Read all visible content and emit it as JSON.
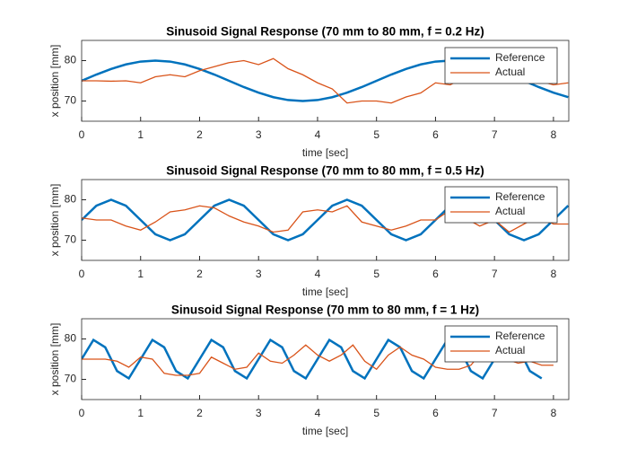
{
  "chart_data": [
    {
      "type": "line",
      "title": "Sinusoid Signal Response (70 mm to 80 mm, f = 0.2 Hz)",
      "x_label": "time [sec]",
      "y_label": "x position [mm]",
      "x": [
        0,
        0.25,
        0.5,
        0.75,
        1,
        1.25,
        1.5,
        1.75,
        2,
        2.25,
        2.5,
        2.75,
        3,
        3.25,
        3.5,
        3.75,
        4,
        4.25,
        4.5,
        4.75,
        5,
        5.25,
        5.5,
        5.75,
        6,
        6.25,
        6.5,
        6.75,
        7,
        7.25,
        7.5,
        7.75,
        8,
        8.25
      ],
      "series": [
        {
          "name": "Reference",
          "color": "#0072bd",
          "values": [
            75,
            76.55,
            77.94,
            79.05,
            79.76,
            80,
            79.76,
            79.05,
            77.94,
            76.55,
            75,
            73.45,
            72.06,
            70.95,
            70.24,
            70,
            70.24,
            70.95,
            72.06,
            73.45,
            75,
            76.55,
            77.94,
            79.05,
            79.76,
            80,
            79.76,
            79.05,
            77.94,
            76.55,
            75,
            73.45,
            72.06,
            70.95
          ]
        },
        {
          "name": "Actual",
          "color": "#d95319",
          "values": [
            75,
            75,
            74.9,
            75,
            74.5,
            76,
            76.5,
            76,
            77.5,
            78.5,
            79.5,
            80,
            79,
            80.5,
            78,
            76.5,
            74.5,
            73,
            69.5,
            70,
            70,
            69.5,
            71,
            72,
            74.5,
            74,
            76,
            75.5,
            75,
            76,
            76.5,
            75,
            74,
            74.5
          ]
        }
      ],
      "xlim": [
        0,
        8.26
      ],
      "ylim": [
        65,
        85
      ],
      "xticks": [
        0,
        1,
        2,
        3,
        4,
        5,
        6,
        7,
        8
      ],
      "yticks": [
        70,
        80
      ],
      "legend": "upper right"
    },
    {
      "type": "line",
      "title": "Sinusoid Signal Response (70 mm to 80 mm, f = 0.5 Hz)",
      "x_label": "time [sec]",
      "y_label": "x position [mm]",
      "x": [
        0,
        0.25,
        0.5,
        0.75,
        1,
        1.25,
        1.5,
        1.75,
        2,
        2.25,
        2.5,
        2.75,
        3,
        3.25,
        3.5,
        3.75,
        4,
        4.25,
        4.5,
        4.75,
        5,
        5.25,
        5.5,
        5.75,
        6,
        6.25,
        6.5,
        6.75,
        7,
        7.25,
        7.5,
        7.75,
        8,
        8.25
      ],
      "series": [
        {
          "name": "Reference",
          "color": "#0072bd",
          "values": [
            75,
            78.54,
            80,
            78.54,
            75,
            71.46,
            70,
            71.46,
            75,
            78.54,
            80,
            78.54,
            75,
            71.46,
            70,
            71.46,
            75,
            78.54,
            80,
            78.54,
            75,
            71.46,
            70,
            71.46,
            75,
            78.54,
            80,
            78.54,
            75,
            71.46,
            70,
            71.46,
            75,
            78.54
          ]
        },
        {
          "name": "Actual",
          "color": "#d95319",
          "values": [
            75.5,
            75,
            75,
            73.5,
            72.5,
            74.5,
            77,
            77.5,
            78.5,
            78,
            76,
            74.5,
            73.5,
            72,
            72.5,
            77,
            77.5,
            77,
            78.5,
            74.5,
            73.5,
            72.5,
            73.5,
            75,
            75,
            77.5,
            75.5,
            73.5,
            75,
            72,
            74,
            76,
            74,
            74
          ]
        }
      ],
      "xlim": [
        0,
        8.26
      ],
      "ylim": [
        65,
        85
      ],
      "xticks": [
        0,
        1,
        2,
        3,
        4,
        5,
        6,
        7,
        8
      ],
      "yticks": [
        70,
        80
      ],
      "legend": "upper right"
    },
    {
      "type": "line",
      "title": "Sinusoid Signal Response (70 mm to 80 mm, f = 1 Hz)",
      "x_label": "time [sec]",
      "y_label": "x position [mm]",
      "x": [
        0,
        0.2,
        0.4,
        0.6,
        0.8,
        1,
        1.2,
        1.4,
        1.6,
        1.8,
        2,
        2.2,
        2.4,
        2.6,
        2.8,
        3,
        3.2,
        3.4,
        3.6,
        3.8,
        4,
        4.2,
        4.4,
        4.6,
        4.8,
        5,
        5.2,
        5.4,
        5.6,
        5.8,
        6,
        6.2,
        6.4,
        6.6,
        6.8,
        7,
        7.2,
        7.4,
        7.6,
        7.8,
        8
      ],
      "series": [
        {
          "name": "Reference",
          "color": "#0072bd",
          "values": [
            75,
            79.76,
            77.94,
            72.06,
            70.24,
            75,
            79.76,
            77.94,
            72.06,
            70.24,
            75,
            79.76,
            77.94,
            72.06,
            70.24,
            75,
            79.76,
            77.94,
            72.06,
            70.24,
            75,
            79.76,
            77.94,
            72.06,
            70.24,
            75,
            79.76,
            77.94,
            72.06,
            70.24,
            75,
            79.76,
            77.94,
            72.06,
            70.24,
            75,
            79.76,
            77.94,
            72.06,
            70.24,
            null
          ]
        },
        {
          "name": "Actual",
          "color": "#d95319",
          "values": [
            75,
            75,
            75,
            74.5,
            73,
            75.5,
            75,
            71.5,
            71,
            71,
            71.5,
            75.5,
            74,
            72.5,
            73,
            76.5,
            74.5,
            74,
            76,
            78.5,
            76,
            74.5,
            76,
            78.5,
            74.5,
            72.5,
            76,
            78,
            76,
            75,
            73,
            72.5,
            72.5,
            73.5,
            77,
            76,
            75,
            74,
            74.5,
            73.5,
            73.5
          ]
        }
      ],
      "xlim": [
        0,
        8.26
      ],
      "ylim": [
        65,
        85
      ],
      "xticks": [
        0,
        1,
        2,
        3,
        4,
        5,
        6,
        7,
        8
      ],
      "yticks": [
        70,
        80
      ],
      "legend": "upper right"
    }
  ]
}
